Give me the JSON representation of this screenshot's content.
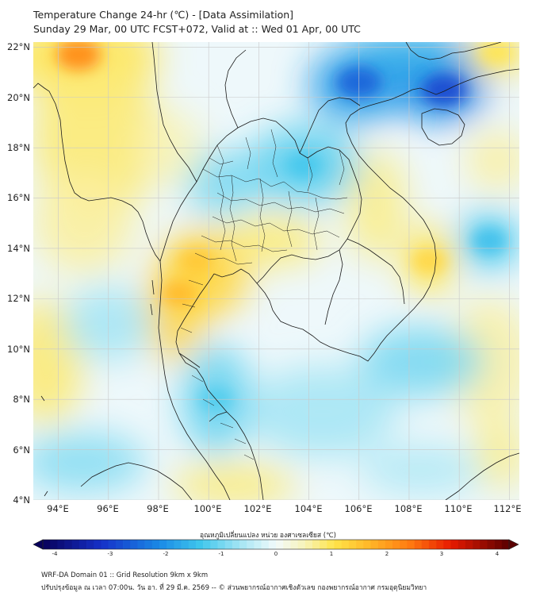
{
  "title_line1": "Temperature Change 24-hr (℃) - [Data Assimilation]",
  "title_line2": "Sunday 29 Mar, 00 UTC FCST+072, Valid at :: Wed 01 Apr, 00 UTC",
  "map": {
    "variable": "24-hr temperature change",
    "units": "℃",
    "lat_labels": [
      "22°N",
      "20°N",
      "18°N",
      "16°N",
      "14°N",
      "12°N",
      "10°N",
      "8°N",
      "6°N",
      "4°N"
    ],
    "lon_labels": [
      "94°E",
      "96°E",
      "98°E",
      "100°E",
      "102°E",
      "104°E",
      "106°E",
      "108°E",
      "110°E",
      "112°E"
    ],
    "lat_range": [
      4,
      22.2
    ],
    "lon_range": [
      93,
      112.4
    ],
    "features": [
      {
        "name": "warm spot Myanmar coast",
        "lat": 21.7,
        "lon": 94.8,
        "value": 2.2
      },
      {
        "name": "warm region central Thailand",
        "lat": 13.5,
        "lon": 99.5,
        "value": 1.4
      },
      {
        "name": "warm region Tenasserim",
        "lat": 12.2,
        "lon": 98.8,
        "value": 1.6
      },
      {
        "name": "warm region east Vietnam coast",
        "lat": 13.5,
        "lon": 108.8,
        "value": 1.2
      },
      {
        "name": "warm region north-east",
        "lat": 21.8,
        "lon": 111.5,
        "value": 1.0
      },
      {
        "name": "cool core Gulf of Tonkin north",
        "lat": 20.6,
        "lon": 106.0,
        "value": -2.5
      },
      {
        "name": "cool core Hainan north",
        "lat": 20.3,
        "lon": 109.4,
        "value": -2.8
      },
      {
        "name": "cool region north-east Thailand / Laos",
        "lat": 17.3,
        "lon": 103.8,
        "value": -1.3
      },
      {
        "name": "cool region Malay peninsula",
        "lat": 8.0,
        "lon": 100.3,
        "value": -1.2
      },
      {
        "name": "cool region South China Sea",
        "lat": 14.3,
        "lon": 111.2,
        "value": -1.4
      }
    ]
  },
  "colorbar": {
    "title": "อุณหภูมิเปลี่ยนแปลง  หน่วย องศาเซลเซียส (℃)",
    "min": -4,
    "max": 4,
    "ticks": [
      "-4",
      "-3",
      "-2",
      "-1",
      "0",
      "1",
      "2",
      "3",
      "4"
    ]
  },
  "footer_line1": "WRF-DA Domain 01 :: Grid Resolution 9km x 9km",
  "footer_line2": "ปรับปรุงข้อมูล ณ เวลา 07:00น. วัน อา. ที่ 29 มี.ค. 2569 -- © ส่วนพยากรณ์อากาศเชิงตัวเลข กองพยากรณ์อากาศ กรมอุตุนิยมวิทยา"
}
